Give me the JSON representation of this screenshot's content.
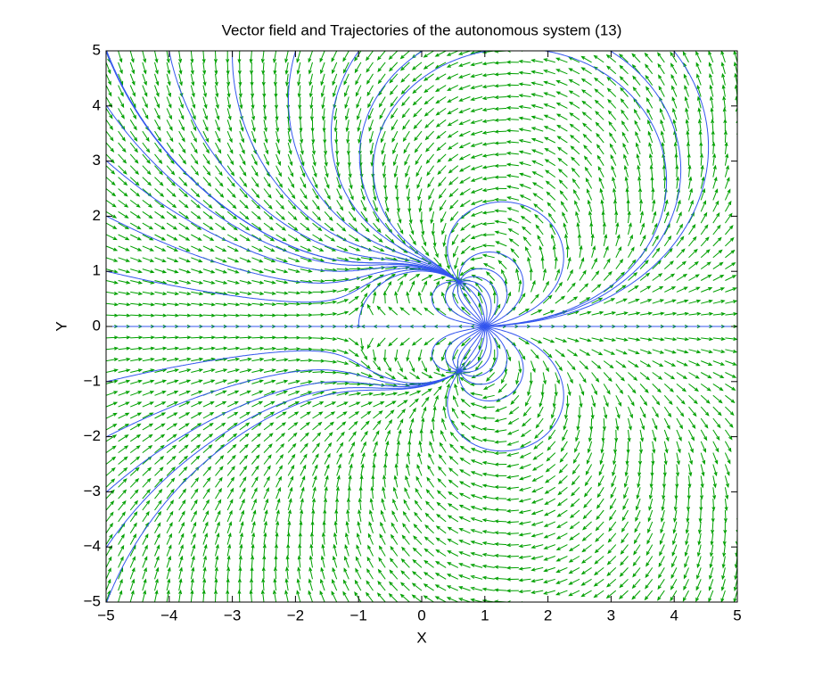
{
  "chart_data": {
    "type": "quiver",
    "title": "Vector field and Trajectories of the autonomous system (13)",
    "x_label": "X",
    "y_label": "Y",
    "xlim": [
      -5,
      5
    ],
    "ylim": [
      -5,
      5
    ],
    "xticks": [
      {
        "value": -5,
        "label": "−5"
      },
      {
        "value": -4,
        "label": "−4"
      },
      {
        "value": -3,
        "label": "−3"
      },
      {
        "value": -2,
        "label": "−2"
      },
      {
        "value": -1,
        "label": "−1"
      },
      0,
      1,
      2,
      3,
      4,
      5
    ],
    "yticks": [
      {
        "value": -5,
        "label": "−5"
      },
      {
        "value": -4,
        "label": "−4"
      },
      {
        "value": -3,
        "label": "−3"
      },
      {
        "value": -2,
        "label": "−2"
      },
      {
        "value": -1,
        "label": "−1"
      },
      0,
      1,
      2,
      3,
      4,
      5
    ],
    "arrow_color": "#00a000",
    "trajectory_color": "#3355ee"
  }
}
